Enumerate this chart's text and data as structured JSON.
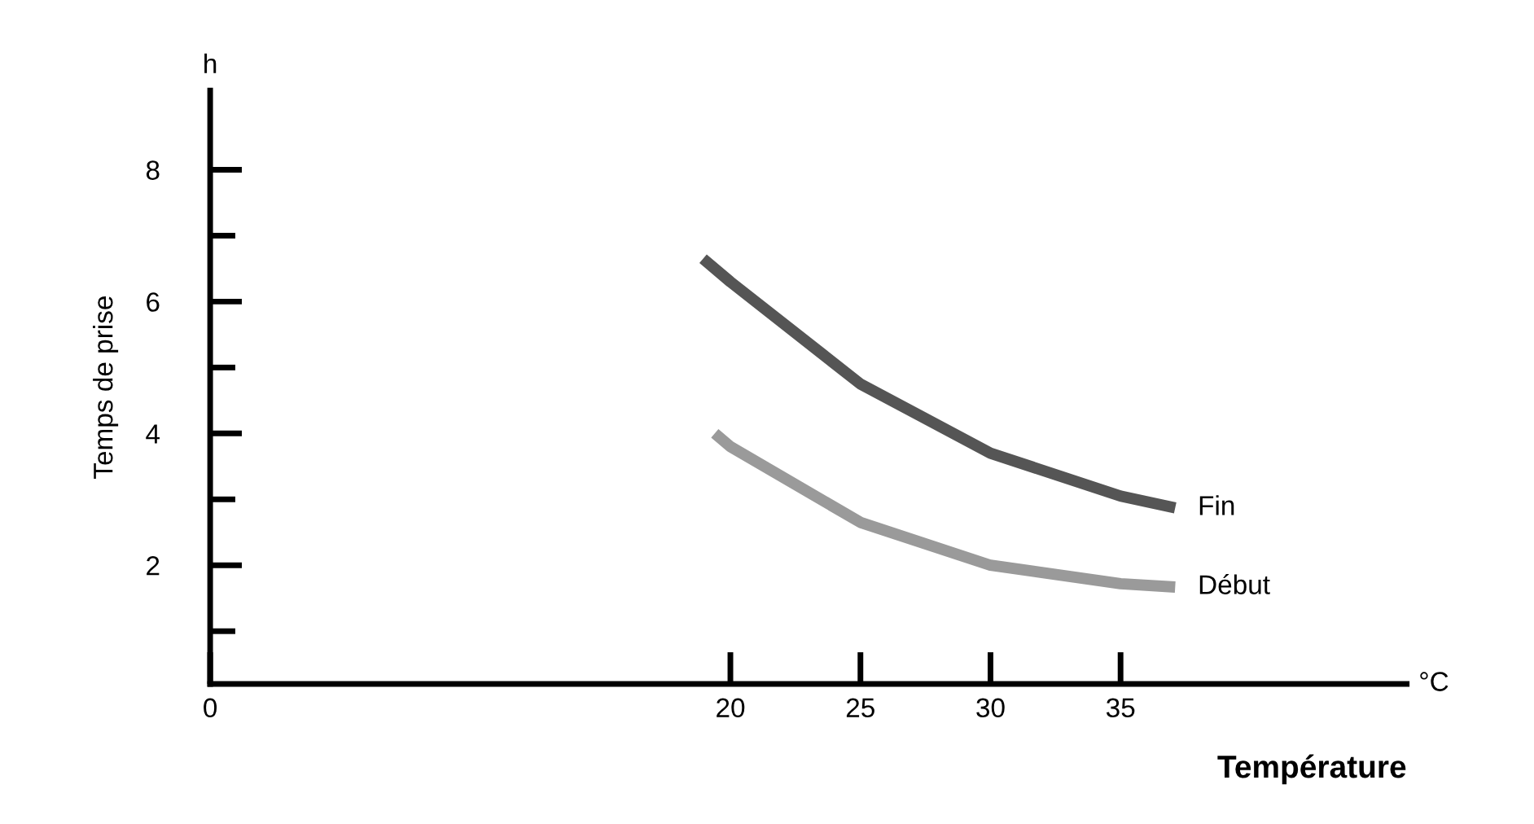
{
  "chart_data": {
    "type": "line",
    "xlabel": "Température",
    "ylabel": "Temps de prise",
    "annotations": [
      "h",
      "°C"
    ],
    "xlim": [
      0,
      46
    ],
    "ylim": [
      0.2,
      9.2
    ],
    "xticks": [
      0,
      20,
      25,
      30,
      35
    ],
    "yticks": [
      {
        "value": 1,
        "label": null
      },
      2,
      {
        "value": 3,
        "label": null
      },
      4,
      {
        "value": 5,
        "label": null
      },
      6,
      {
        "value": 7,
        "label": null
      },
      8
    ],
    "grid": false,
    "legend": false,
    "series": [
      {
        "name": "Fin",
        "color": "#555555",
        "x": [
          18.95,
          20,
          25,
          30,
          35,
          37.1
        ],
        "values": [
          6.65,
          6.3,
          4.75,
          3.7,
          3.05,
          2.87
        ]
      },
      {
        "name": "Début",
        "color": "#9a9a9a",
        "x": [
          19.4,
          20,
          25,
          30,
          35,
          37.1
        ],
        "values": [
          4.0,
          3.8,
          2.65,
          2.0,
          1.72,
          1.67
        ]
      }
    ]
  }
}
